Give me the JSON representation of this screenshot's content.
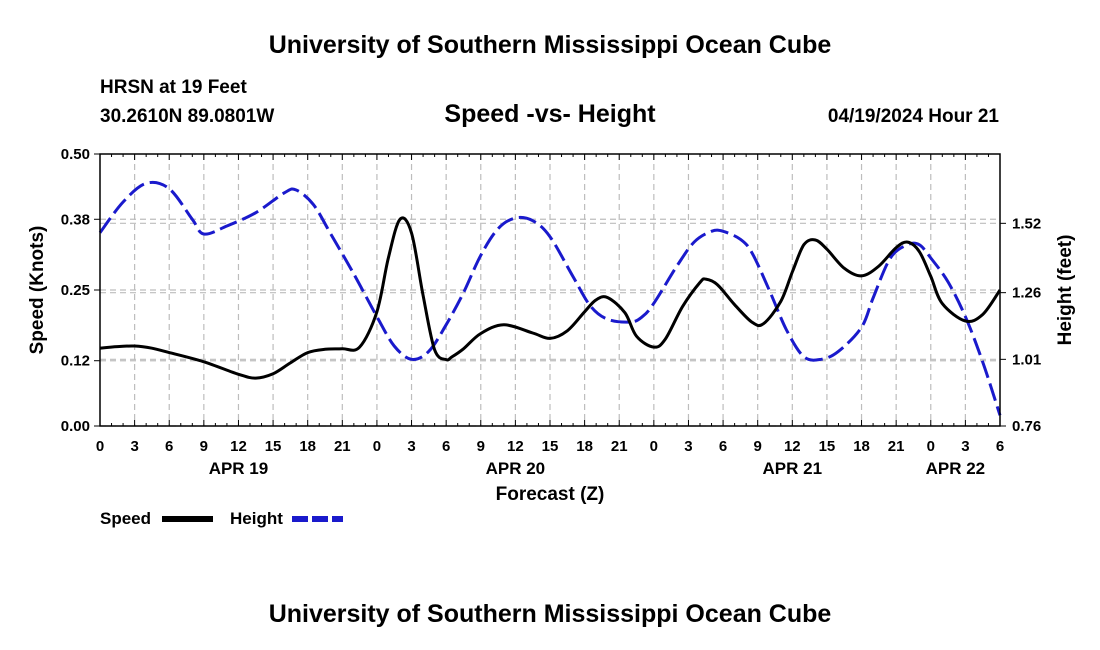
{
  "header": {
    "title": "University of Southern Mississippi Ocean Cube",
    "station": "HRSN at 19 Feet",
    "coordinates": "30.2610N  89.0801W",
    "datetime": "04/19/2024 Hour 21"
  },
  "footer": {
    "title": "University of Southern Mississippi Ocean Cube"
  },
  "legend": {
    "speed_label": "Speed",
    "height_label": "Height"
  },
  "colors": {
    "speed": "#000000",
    "height": "#1a1acc",
    "grid": "#bdbdbd"
  },
  "chart_data": {
    "type": "line",
    "title": "Speed -vs- Height",
    "xlabel": "Forecast (Z)",
    "ylabel": "Speed (Knots)",
    "y2label": "Height (feet)",
    "x_range": [
      0,
      78
    ],
    "ylim": [
      0,
      0.5
    ],
    "y2lim": [
      0.76,
      1.78
    ],
    "x_tick_hours": [
      0,
      3,
      6,
      9,
      12,
      15,
      18,
      21,
      24,
      27,
      30,
      33,
      36,
      39,
      42,
      45,
      48,
      51,
      54,
      57,
      60,
      63,
      66,
      69,
      72,
      75,
      78
    ],
    "x_tick_labels": [
      "0",
      "3",
      "6",
      "9",
      "12",
      "15",
      "18",
      "21",
      "0",
      "3",
      "6",
      "9",
      "12",
      "15",
      "18",
      "21",
      "0",
      "3",
      "6",
      "9",
      "12",
      "15",
      "18",
      "21",
      "0",
      "3",
      "6"
    ],
    "date_labels": [
      {
        "hour": 12,
        "label": "APR 19"
      },
      {
        "hour": 36,
        "label": "APR 20"
      },
      {
        "hour": 60,
        "label": "APR 21"
      },
      {
        "hour": 75,
        "label": "APR 22"
      }
    ],
    "y_ticks": [
      0.0,
      0.12,
      0.25,
      0.38,
      0.5
    ],
    "y_tick_labels": [
      "0.00",
      "0.12",
      "0.25",
      "0.38",
      "0.50"
    ],
    "y2_ticks": [
      0.76,
      1.01,
      1.26,
      1.52
    ],
    "y2_tick_labels": [
      "0.76",
      "1.01",
      "1.26",
      "1.52"
    ],
    "series": [
      {
        "name": "Speed",
        "axis": "left",
        "style": "solid",
        "x": [
          0,
          1.5,
          3,
          4.5,
          6,
          9,
          12,
          13.5,
          15,
          16.5,
          18,
          19.5,
          21,
          22.5,
          24,
          25,
          26,
          27,
          28,
          29,
          30,
          30.5,
          31.5,
          33,
          35,
          37.5,
          39,
          40.5,
          42,
          43,
          44,
          45.5,
          46.5,
          48,
          49,
          50.5,
          52,
          52.5,
          53.5,
          55,
          56.5,
          57.5,
          59,
          60,
          61,
          62,
          63,
          64.5,
          66,
          67.5,
          69,
          70,
          71,
          72,
          73,
          75,
          76.5,
          78
        ],
        "y": [
          0.143,
          0.146,
          0.147,
          0.143,
          0.135,
          0.118,
          0.095,
          0.088,
          0.096,
          0.116,
          0.135,
          0.141,
          0.142,
          0.145,
          0.21,
          0.31,
          0.38,
          0.355,
          0.24,
          0.14,
          0.122,
          0.127,
          0.142,
          0.17,
          0.186,
          0.171,
          0.161,
          0.175,
          0.21,
          0.232,
          0.236,
          0.208,
          0.165,
          0.145,
          0.16,
          0.22,
          0.264,
          0.27,
          0.26,
          0.223,
          0.191,
          0.188,
          0.229,
          0.283,
          0.333,
          0.342,
          0.325,
          0.29,
          0.276,
          0.294,
          0.328,
          0.338,
          0.321,
          0.275,
          0.225,
          0.193,
          0.205,
          0.25
        ]
      },
      {
        "name": "Height",
        "axis": "right",
        "style": "dashed",
        "x": [
          0,
          2,
          4,
          6,
          8,
          9,
          11,
          13.5,
          16,
          17,
          18.5,
          20,
          22,
          24,
          25.5,
          27,
          28.5,
          30,
          31.5,
          33,
          34.5,
          36,
          37.5,
          39,
          41,
          42.5,
          44,
          46,
          47,
          48,
          50,
          51.5,
          53,
          54,
          55.5,
          56.5,
          58,
          59.5,
          61,
          62.5,
          64,
          66,
          67,
          68.5,
          70,
          71,
          72,
          73.5,
          75,
          76.5,
          78
        ],
        "y": [
          1.485,
          1.6,
          1.67,
          1.65,
          1.535,
          1.48,
          1.51,
          1.56,
          1.635,
          1.645,
          1.59,
          1.48,
          1.33,
          1.17,
          1.06,
          1.01,
          1.04,
          1.14,
          1.26,
          1.4,
          1.5,
          1.54,
          1.53,
          1.47,
          1.32,
          1.21,
          1.16,
          1.15,
          1.17,
          1.22,
          1.36,
          1.45,
          1.49,
          1.49,
          1.46,
          1.41,
          1.27,
          1.12,
          1.02,
          1.01,
          1.04,
          1.13,
          1.24,
          1.39,
          1.44,
          1.44,
          1.39,
          1.3,
          1.17,
          1.0,
          0.8
        ]
      }
    ]
  }
}
